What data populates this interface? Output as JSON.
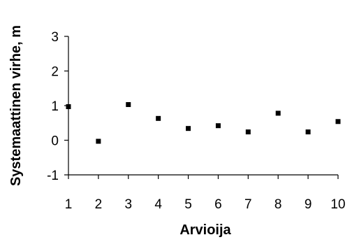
{
  "chart_data": {
    "type": "scatter",
    "xlabel": "Arvioija",
    "ylabel": "Systemaattinen virhe, m",
    "x": [
      1,
      2,
      3,
      4,
      5,
      6,
      7,
      8,
      9,
      10
    ],
    "y": [
      0.97,
      -0.03,
      1.03,
      0.63,
      0.34,
      0.42,
      0.24,
      0.78,
      0.24,
      0.54
    ],
    "xticks": [
      "1",
      "2",
      "3",
      "4",
      "5",
      "6",
      "7",
      "8",
      "9",
      "10"
    ],
    "yticks": [
      "-1",
      "0",
      "1",
      "2",
      "3"
    ],
    "xlim": [
      1,
      10
    ],
    "ylim": [
      -1,
      3
    ],
    "grid": false,
    "legend": "none",
    "marker": "square",
    "color": "#000000"
  }
}
